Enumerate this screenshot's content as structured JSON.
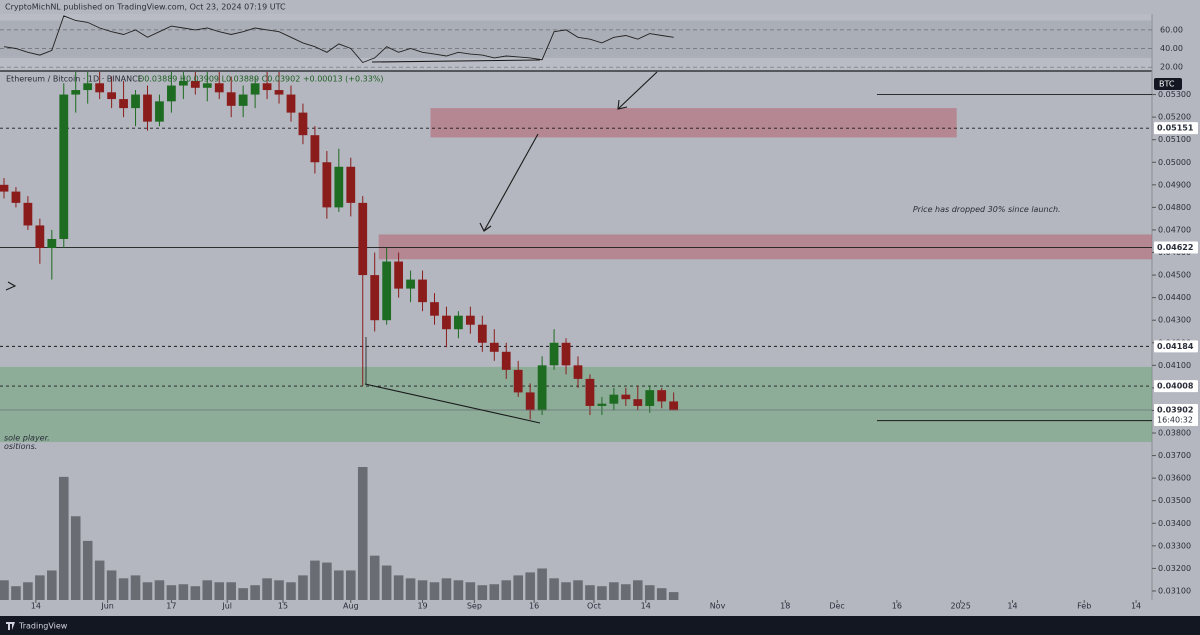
{
  "chart_data": {
    "type": "candlestick",
    "header": "CryptoMichNL published on TradingView.com, Oct 23, 2024 07:19 UTC",
    "symbol": "Ethereum / Bitcoin · 1D · BINANCE",
    "ohlc_legend": "O0.03889 H0.03909 L0.03889 C0.03902 +0.00013 (+0.33%)",
    "currency": "BTC",
    "brand": "TradingView",
    "annotations": [
      {
        "text": "Price has dropped 30% since launch.",
        "x": "2024-12-20",
        "price": 0.0479
      },
      {
        "text": "sole player.",
        "x": "2024-05-06",
        "price": 0.03778
      },
      {
        "text": "ositions.",
        "x": "2024-05-06",
        "price": 0.0374
      }
    ],
    "x": [
      "2024-05-06",
      "2024-05-09",
      "2024-05-12",
      "2024-05-15",
      "2024-05-18",
      "2024-05-21",
      "2024-05-24",
      "2024-05-27",
      "2024-05-30",
      "2024-06-02",
      "2024-06-05",
      "2024-06-08",
      "2024-06-11",
      "2024-06-14",
      "2024-06-17",
      "2024-06-20",
      "2024-06-23",
      "2024-06-26",
      "2024-06-29",
      "2024-07-02",
      "2024-07-05",
      "2024-07-08",
      "2024-07-11",
      "2024-07-14",
      "2024-07-17",
      "2024-07-20",
      "2024-07-23",
      "2024-07-26",
      "2024-07-29",
      "2024-08-01",
      "2024-08-04",
      "2024-08-07",
      "2024-08-10",
      "2024-08-13",
      "2024-08-16",
      "2024-08-19",
      "2024-08-22",
      "2024-08-25",
      "2024-08-28",
      "2024-08-31",
      "2024-09-03",
      "2024-09-06",
      "2024-09-09",
      "2024-09-12",
      "2024-09-15",
      "2024-09-18",
      "2024-09-21",
      "2024-09-24",
      "2024-09-27",
      "2024-09-30",
      "2024-10-03",
      "2024-10-06",
      "2024-10-09",
      "2024-10-12",
      "2024-10-15",
      "2024-10-18",
      "2024-10-21"
    ],
    "open": [
      0.049,
      0.0487,
      0.0482,
      0.0472,
      0.0462,
      0.0466,
      0.053,
      0.0532,
      0.0535,
      0.0531,
      0.0528,
      0.0524,
      0.053,
      0.0518,
      0.0527,
      0.0534,
      0.0536,
      0.0533,
      0.0535,
      0.0531,
      0.0525,
      0.053,
      0.0535,
      0.0532,
      0.053,
      0.0522,
      0.0512,
      0.05,
      0.048,
      0.0498,
      0.0482,
      0.045,
      0.043,
      0.0456,
      0.0444,
      0.0448,
      0.0438,
      0.0432,
      0.0426,
      0.0432,
      0.0428,
      0.042,
      0.0416,
      0.0408,
      0.0398,
      0.039,
      0.041,
      0.042,
      0.041,
      0.0404,
      0.0392,
      0.0393,
      0.0397,
      0.0395,
      0.0392,
      0.0399,
      0.0394
    ],
    "high": [
      0.0493,
      0.0489,
      0.0485,
      0.0475,
      0.047,
      0.0535,
      0.054,
      0.054,
      0.054,
      0.0538,
      0.0536,
      0.0532,
      0.0534,
      0.053,
      0.054,
      0.054,
      0.054,
      0.054,
      0.054,
      0.0538,
      0.0534,
      0.0538,
      0.054,
      0.054,
      0.0534,
      0.0526,
      0.0516,
      0.0505,
      0.0506,
      0.0502,
      0.0485,
      0.046,
      0.0462,
      0.046,
      0.0452,
      0.0452,
      0.0442,
      0.0436,
      0.0434,
      0.0436,
      0.0432,
      0.0426,
      0.042,
      0.0412,
      0.0402,
      0.0414,
      0.0426,
      0.0422,
      0.0414,
      0.0406,
      0.0396,
      0.04,
      0.04,
      0.0401,
      0.0401,
      0.04,
      0.0398
    ],
    "low": [
      0.0484,
      0.048,
      0.047,
      0.0455,
      0.0448,
      0.0462,
      0.0522,
      0.0526,
      0.0528,
      0.0524,
      0.052,
      0.0516,
      0.0514,
      0.0516,
      0.0522,
      0.0528,
      0.053,
      0.0527,
      0.0528,
      0.052,
      0.052,
      0.0524,
      0.0528,
      0.0526,
      0.0518,
      0.0508,
      0.0495,
      0.0475,
      0.0478,
      0.0476,
      0.0401,
      0.0425,
      0.0428,
      0.044,
      0.0438,
      0.0434,
      0.0428,
      0.0418,
      0.0422,
      0.0424,
      0.0416,
      0.0412,
      0.0404,
      0.0396,
      0.0386,
      0.0388,
      0.0408,
      0.0406,
      0.04,
      0.0388,
      0.0388,
      0.039,
      0.0392,
      0.039,
      0.0389,
      0.0391,
      0.039
    ],
    "close": [
      0.0487,
      0.0482,
      0.0472,
      0.0462,
      0.0466,
      0.053,
      0.0532,
      0.0535,
      0.0531,
      0.0528,
      0.0524,
      0.053,
      0.0518,
      0.0527,
      0.0534,
      0.0536,
      0.0533,
      0.0535,
      0.0531,
      0.0525,
      0.053,
      0.0535,
      0.0532,
      0.053,
      0.0522,
      0.0512,
      0.05,
      0.048,
      0.0498,
      0.0482,
      0.045,
      0.043,
      0.0456,
      0.0444,
      0.0448,
      0.0438,
      0.0432,
      0.0426,
      0.0432,
      0.0428,
      0.042,
      0.0416,
      0.0408,
      0.0398,
      0.039,
      0.041,
      0.042,
      0.041,
      0.0404,
      0.0392,
      0.0393,
      0.0397,
      0.0395,
      0.0392,
      0.0399,
      0.0394,
      0.039
    ],
    "volume": [
      20,
      14,
      18,
      25,
      30,
      125,
      85,
      60,
      40,
      30,
      22,
      25,
      18,
      20,
      15,
      16,
      14,
      20,
      18,
      18,
      12,
      15,
      22,
      20,
      18,
      25,
      40,
      38,
      30,
      30,
      135,
      45,
      35,
      25,
      22,
      20,
      18,
      22,
      20,
      18,
      15,
      16,
      20,
      25,
      28,
      32,
      22,
      18,
      20,
      15,
      14,
      18,
      16,
      20,
      15,
      12,
      8
    ],
    "rsi": [
      42,
      40,
      36,
      33,
      38,
      75,
      70,
      68,
      62,
      58,
      55,
      60,
      52,
      58,
      64,
      62,
      60,
      62,
      58,
      55,
      58,
      62,
      60,
      58,
      52,
      46,
      42,
      36,
      45,
      40,
      25,
      30,
      42,
      36,
      40,
      36,
      34,
      32,
      36,
      34,
      33,
      30,
      32,
      31,
      30,
      28,
      58,
      60,
      52,
      50,
      46,
      52,
      54,
      50,
      56,
      54,
      52
    ],
    "up_color": "#1e6b22",
    "down_color": "#8a1c1c",
    "volume_color": "#4a4c52",
    "rsi_color": "#222222",
    "xlim": [
      "2024-05-05",
      "2025-02-18"
    ],
    "xticks": [
      {
        "value": "2024-05-14",
        "label": "14"
      },
      {
        "value": "2024-06-01",
        "label": "Jun"
      },
      {
        "value": "2024-06-17",
        "label": "17"
      },
      {
        "value": "2024-07-01",
        "label": "Jul"
      },
      {
        "value": "2024-07-15",
        "label": "15"
      },
      {
        "value": "2024-08-01",
        "label": "Aug"
      },
      {
        "value": "2024-08-19",
        "label": "19"
      },
      {
        "value": "2024-09-01",
        "label": "Sep"
      },
      {
        "value": "2024-09-16",
        "label": "16"
      },
      {
        "value": "2024-10-01",
        "label": "Oct"
      },
      {
        "value": "2024-10-14",
        "label": "14"
      },
      {
        "value": "2024-11-01",
        "label": "Nov"
      },
      {
        "value": "2024-11-18",
        "label": "18"
      },
      {
        "value": "2024-12-01",
        "label": "Dec"
      },
      {
        "value": "2024-12-16",
        "label": "16"
      },
      {
        "value": "2025-01-01",
        "label": "2025"
      },
      {
        "value": "2025-01-14",
        "label": "14"
      },
      {
        "value": "2025-02-01",
        "label": "Feb"
      },
      {
        "value": "2025-02-14",
        "label": "14"
      }
    ],
    "ylim": [
      0.0306,
      0.054
    ],
    "yticks": [
      {
        "value": 0.031,
        "label": "0.03100"
      },
      {
        "value": 0.032,
        "label": "0.03200"
      },
      {
        "value": 0.033,
        "label": "0.03300"
      },
      {
        "value": 0.034,
        "label": "0.03400"
      },
      {
        "value": 0.035,
        "label": "0.03500"
      },
      {
        "value": 0.036,
        "label": "0.03600"
      },
      {
        "value": 0.037,
        "label": "0.03700"
      },
      {
        "value": 0.038,
        "label": "0.03800"
      },
      {
        "value": 0.039,
        "label": "0.03900"
      },
      {
        "value": 0.04,
        "label": "0.04000"
      },
      {
        "value": 0.041,
        "label": "0.04100"
      },
      {
        "value": 0.042,
        "label": "0.04200"
      },
      {
        "value": 0.043,
        "label": "0.04300"
      },
      {
        "value": 0.044,
        "label": "0.04400"
      },
      {
        "value": 0.045,
        "label": "0.04500"
      },
      {
        "value": 0.046,
        "label": "0.04600"
      },
      {
        "value": 0.047,
        "label": "0.04700"
      },
      {
        "value": 0.048,
        "label": "0.04800"
      },
      {
        "value": 0.049,
        "label": "0.04900"
      },
      {
        "value": 0.05,
        "label": "0.05000"
      },
      {
        "value": 0.051,
        "label": "0.05100"
      },
      {
        "value": 0.052,
        "label": "0.05200"
      },
      {
        "value": 0.053,
        "label": "0.05300"
      }
    ],
    "rsi_ylim": [
      17,
      77
    ],
    "rsi_yticks": [
      {
        "value": 20,
        "label": "20.00"
      },
      {
        "value": 40,
        "label": "40.00"
      },
      {
        "value": 60,
        "label": "60.00"
      }
    ],
    "rsi_band": [
      30,
      70
    ],
    "zones": [
      {
        "from": "2024-08-21",
        "to": "2024-12-31",
        "low": 0.0511,
        "high": 0.0524,
        "color": "#b7606f"
      },
      {
        "from": "2024-08-08",
        "to": "2025-02-18",
        "low": 0.0457,
        "high": 0.0468,
        "color": "#b7606f"
      },
      {
        "from": "2024-05-05",
        "to": "2025-02-18",
        "low": 0.0376,
        "high": 0.04093,
        "color": "#6da57a"
      }
    ],
    "levels": [
      {
        "price": 0.05151,
        "style": "dashed"
      },
      {
        "price": 0.04622,
        "style": "solid"
      },
      {
        "price": 0.04184,
        "style": "dashed"
      },
      {
        "price": 0.04008,
        "style": "dashed"
      }
    ],
    "rays": [
      {
        "price": 0.053,
        "from": "2024-12-11"
      },
      {
        "price": 0.03855,
        "from": "2024-12-11"
      }
    ],
    "last_price": 0.03902,
    "countdown": "16:40:32"
  }
}
